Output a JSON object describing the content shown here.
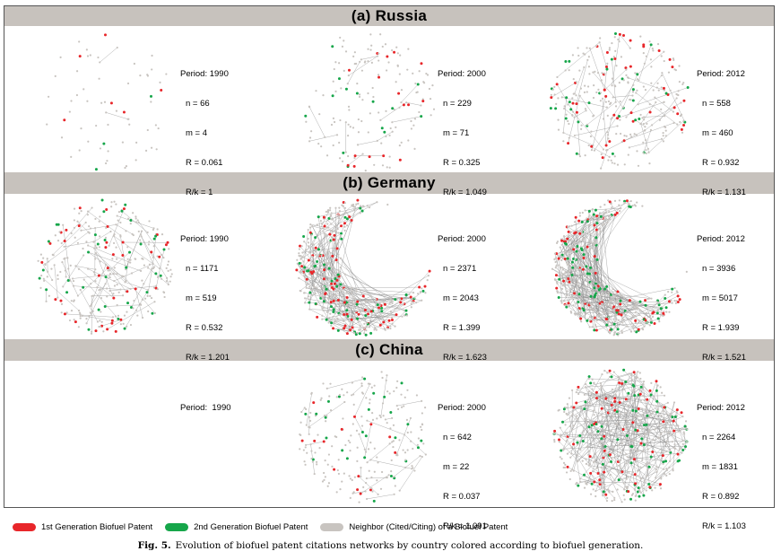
{
  "colors": {
    "gen1": "#e8262a",
    "gen2": "#16a64a",
    "neighbor": "#c8c4c0",
    "band": "#c7c2bd",
    "edge": "#8d8d8d"
  },
  "countries": [
    {
      "title": "(a) Russia",
      "panels": [
        {
          "period": "Period: 1990",
          "n": "n = 66",
          "m": "m = 4",
          "R": "R = 0.061",
          "Rk": "R/k = 1",
          "density": 0.05
        },
        {
          "period": "Period: 2000",
          "n": "n = 229",
          "m": "m = 71",
          "R": "R = 0.325",
          "Rk": "R/k = 1.049",
          "density": 0.25
        },
        {
          "period": "Period: 2012",
          "n": "n = 558",
          "m": "m = 460",
          "R": "R = 0.932",
          "Rk": "R/k = 1.131",
          "density": 0.55
        }
      ]
    },
    {
      "title": "(b) Germany",
      "panels": [
        {
          "period": "Period: 1990",
          "n": "n = 1171",
          "m": "m = 519",
          "R": "R = 0.532",
          "Rk": "R/k = 1.201",
          "density": 0.6
        },
        {
          "period": "Period: 2000",
          "n": "n = 2371",
          "m": "m = 2043",
          "R": "R = 1.399",
          "Rk": "R/k = 1.623",
          "density": 0.9
        },
        {
          "period": "Period: 2012",
          "n": "n = 3936",
          "m": "m = 5017",
          "R": "R = 1.939",
          "Rk": "R/k = 1.521",
          "density": 1.0
        }
      ]
    },
    {
      "title": "(c) China",
      "panels": [
        {
          "period": "Period:  1990",
          "n": "",
          "m": "",
          "R": "",
          "Rk": "",
          "density": 0
        },
        {
          "period": "Period: 2000",
          "n": "n = 642",
          "m": "m = 22",
          "R": "R = 0.037",
          "Rk": "R/k = 1.091",
          "density": 0.4
        },
        {
          "period": "Period: 2012",
          "n": "n = 2264",
          "m": "m = 1831",
          "R": "R = 0.892",
          "Rk": "R/k = 1.103",
          "density": 1.0
        }
      ]
    }
  ],
  "legend": {
    "gen1_label": "1st Generation Biofuel Patent",
    "gen2_label": "2nd Generation Biofuel Patent",
    "neighbor_label": "Neighbor (Cited/Citing) of a Biofuel Patent"
  },
  "caption": {
    "label": "Fig. 5.",
    "text": "Evolution of biofuel patent citations networks by country colored according to biofuel generation."
  }
}
